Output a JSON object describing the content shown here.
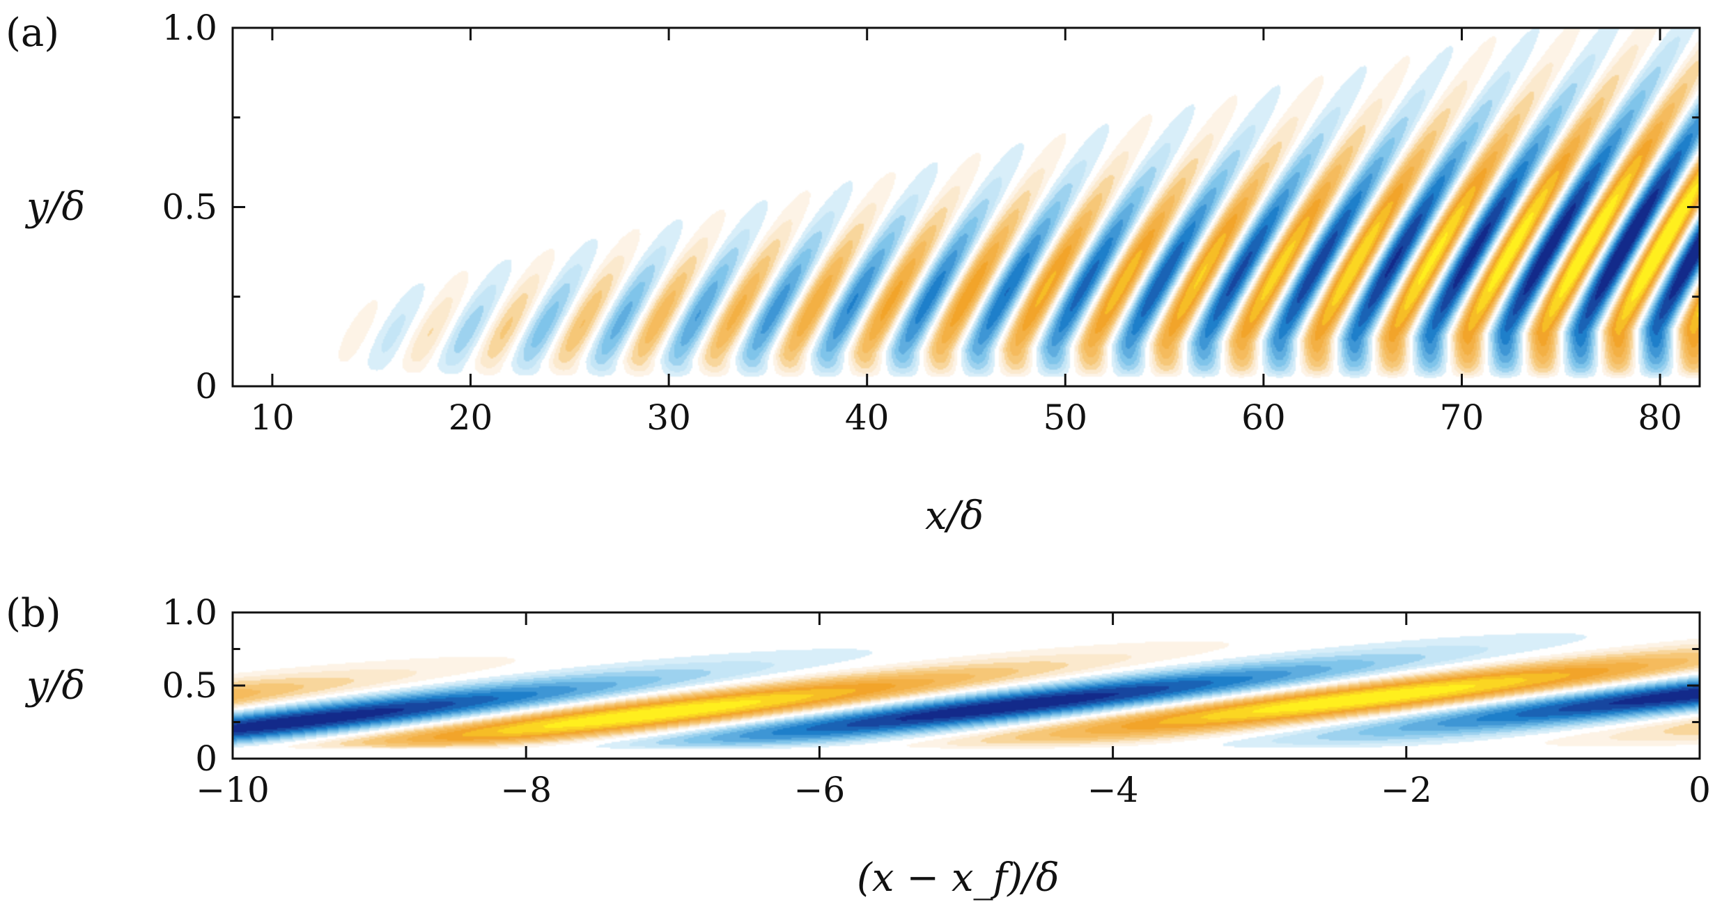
{
  "chart_data": [
    {
      "type": "heatmap",
      "panel_label": "(a)",
      "xlabel": "x/δ",
      "ylabel": "y/δ",
      "xlim": [
        8,
        82
      ],
      "ylim": [
        0,
        1.0
      ],
      "xticks": [
        10,
        20,
        30,
        40,
        50,
        60,
        70,
        80
      ],
      "xtick_labels": [
        "10",
        "20",
        "30",
        "40",
        "50",
        "60",
        "70",
        "80"
      ],
      "yticks": [
        0,
        0.5,
        1.0
      ],
      "ytick_labels": [
        "0",
        "0.5",
        "1.0"
      ],
      "wave": {
        "x_start": 11.5,
        "wavelength": 3.8,
        "onset_width": 7,
        "decay_x": 105
      },
      "colors": {
        "negative": [
          "#d8eef9",
          "#7fc4ea",
          "#1e7fca",
          "#132a8a"
        ],
        "positive": [
          "#fdf3e6",
          "#f6c777",
          "#f2a42a",
          "#ffef1e"
        ]
      }
    },
    {
      "type": "heatmap",
      "panel_label": "(b)",
      "xlabel": "(x − x_f)/δ",
      "ylabel": "y/δ",
      "xlim": [
        -10,
        0
      ],
      "ylim": [
        0,
        1.0
      ],
      "xticks": [
        -10,
        -8,
        -6,
        -4,
        -2,
        0
      ],
      "xtick_labels": [
        "−10",
        "−8",
        "−6",
        "−4",
        "−2",
        "0"
      ],
      "yticks": [
        0,
        0.5,
        1.0
      ],
      "ytick_labels": [
        "0",
        "0.5",
        "1.0"
      ],
      "wave": {
        "wavelength": 4.1,
        "tilt": 0.1
      },
      "colors": {
        "negative": [
          "#d8eef9",
          "#7fc4ea",
          "#1e7fca",
          "#132a8a"
        ],
        "positive": [
          "#fdf3e6",
          "#f6c777",
          "#f2a42a",
          "#ffef1e"
        ]
      }
    }
  ]
}
